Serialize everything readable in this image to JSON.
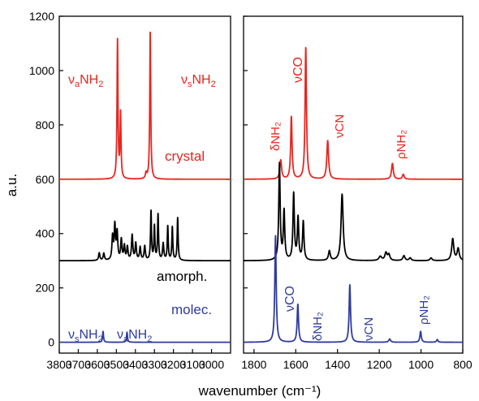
{
  "chart_data": {
    "type": "line",
    "title": "",
    "xlabel": "wavenumber (cm⁻¹)",
    "ylabel": "a.u.",
    "ylim": [
      -40,
      1200
    ],
    "yticks": [
      0,
      200,
      400,
      600,
      800,
      1000,
      1200
    ],
    "grid": false,
    "panels": [
      {
        "name": "left",
        "xlim": [
          3800,
          2900
        ],
        "xticks": [
          3800,
          3700,
          3600,
          3500,
          3400,
          3300,
          3200,
          3100,
          3000
        ]
      },
      {
        "name": "right",
        "xlim": [
          1850,
          800
        ],
        "xticks": [
          1800,
          1600,
          1400,
          1200,
          1000,
          800
        ]
      }
    ],
    "series": [
      {
        "name": "crystal",
        "color": "#e8251f",
        "baseline": 600,
        "peaks": [
          [
            3494,
            510,
            3
          ],
          [
            3478,
            238,
            3
          ],
          [
            3344,
            20,
            4
          ],
          [
            3322,
            545,
            3
          ],
          [
            1672,
            70,
            5
          ],
          [
            1621,
            230,
            4
          ],
          [
            1552,
            485,
            4
          ],
          [
            1447,
            142,
            5
          ],
          [
            1137,
            58,
            5
          ],
          [
            1085,
            18,
            5
          ]
        ]
      },
      {
        "name": "amorph.",
        "color": "#000000",
        "baseline": 300,
        "peaks": [
          [
            3590,
            28,
            4
          ],
          [
            3566,
            26,
            4
          ],
          [
            3520,
            85,
            4
          ],
          [
            3508,
            125,
            4
          ],
          [
            3496,
            100,
            4
          ],
          [
            3474,
            75,
            4
          ],
          [
            3458,
            52,
            4
          ],
          [
            3442,
            48,
            4
          ],
          [
            3417,
            92,
            4
          ],
          [
            3398,
            62,
            4
          ],
          [
            3375,
            48,
            4
          ],
          [
            3351,
            52,
            4
          ],
          [
            3318,
            180,
            3
          ],
          [
            3300,
            124,
            3
          ],
          [
            3281,
            168,
            3
          ],
          [
            3254,
            62,
            4
          ],
          [
            3230,
            125,
            3
          ],
          [
            3206,
            122,
            3
          ],
          [
            3178,
            158,
            3
          ],
          [
            1678,
            356,
            4
          ],
          [
            1656,
            180,
            4
          ],
          [
            1610,
            244,
            4
          ],
          [
            1589,
            154,
            4
          ],
          [
            1564,
            142,
            4
          ],
          [
            1439,
            35,
            5
          ],
          [
            1378,
            245,
            6
          ],
          [
            1195,
            15,
            8
          ],
          [
            1168,
            28,
            6
          ],
          [
            1154,
            22,
            6
          ],
          [
            1082,
            18,
            6
          ],
          [
            1052,
            10,
            6
          ],
          [
            952,
            10,
            6
          ],
          [
            848,
            80,
            6
          ],
          [
            822,
            44,
            6
          ]
        ]
      },
      {
        "name": "molec.",
        "color": "#2e3b9e",
        "baseline": 0,
        "peaks": [
          [
            3570,
            40,
            3
          ],
          [
            3444,
            37,
            3
          ],
          [
            1697,
            392,
            4
          ],
          [
            1590,
            140,
            4
          ],
          [
            1341,
            212,
            4
          ],
          [
            1150,
            12,
            5
          ],
          [
            1002,
            40,
            4
          ],
          [
            922,
            10,
            4
          ]
        ]
      }
    ],
    "annotations": {
      "crystal_label": "crystal",
      "amorph_label": "amorph.",
      "molec_label": "molec.",
      "crystal": {
        "va_nh2": {
          "main": "ν",
          "sub": "a",
          "rest": "NH",
          "sub2": "2"
        },
        "vs_nh2": {
          "main": "ν",
          "sub": "s",
          "rest": "NH",
          "sub2": "2"
        },
        "dnh2": "δNH₂",
        "vco": "νCO",
        "vcn": "νCN",
        "rnh2": "ρNH₂"
      },
      "molec": {
        "vs_nh2": {
          "main": "ν",
          "sub": "s",
          "rest": "NH",
          "sub2": "2"
        },
        "va_nh2": {
          "main": "ν",
          "sub": "a",
          "rest": "NH",
          "sub2": "2"
        },
        "vco": "νCO",
        "dnh2": "δNH₂",
        "vcn": "νCN",
        "rnh2": "ρNH₂"
      }
    }
  }
}
